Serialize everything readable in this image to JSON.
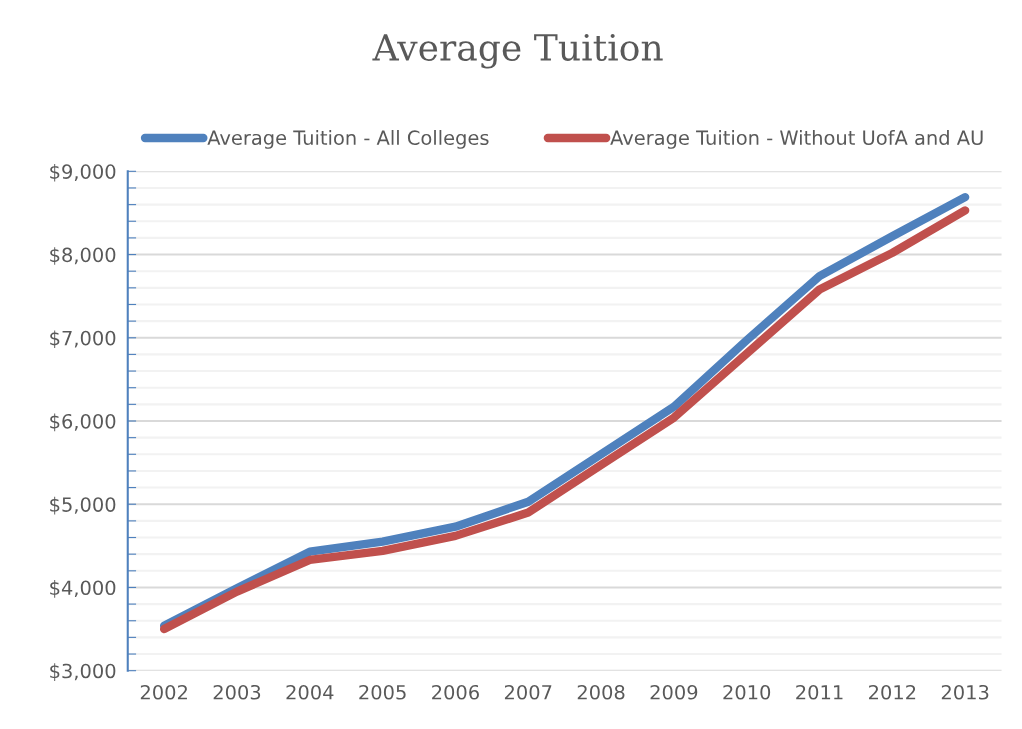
{
  "chart_data": {
    "type": "line",
    "title": "Average Tuition",
    "categories": [
      "2002",
      "2003",
      "2004",
      "2005",
      "2006",
      "2007",
      "2008",
      "2009",
      "2010",
      "2011",
      "2012",
      "2013"
    ],
    "series": [
      {
        "name": "Average Tuition - All Colleges",
        "color": "#4f81bd",
        "values": [
          3540,
          3990,
          4430,
          4550,
          4730,
          5030,
          5600,
          6170,
          6970,
          7740,
          8220,
          8690
        ]
      },
      {
        "name": "Average Tuition - Without UofA and AU",
        "color": "#c0504d",
        "values": [
          3500,
          3950,
          4330,
          4440,
          4620,
          4900,
          5470,
          6040,
          6810,
          7580,
          8020,
          8530
        ]
      }
    ],
    "ylim": [
      3000,
      9000
    ],
    "yticks": [
      {
        "value": 3000,
        "label": "$3,000"
      },
      {
        "value": 3200,
        "label": null
      },
      {
        "value": 3400,
        "label": null
      },
      {
        "value": 3600,
        "label": null
      },
      {
        "value": 3800,
        "label": null
      },
      {
        "value": 4000,
        "label": "$4,000"
      },
      {
        "value": 4200,
        "label": null
      },
      {
        "value": 4400,
        "label": null
      },
      {
        "value": 4600,
        "label": null
      },
      {
        "value": 4800,
        "label": null
      },
      {
        "value": 5000,
        "label": "$5,000"
      },
      {
        "value": 5200,
        "label": null
      },
      {
        "value": 5400,
        "label": null
      },
      {
        "value": 5600,
        "label": null
      },
      {
        "value": 5800,
        "label": null
      },
      {
        "value": 6000,
        "label": "$6,000"
      },
      {
        "value": 6200,
        "label": null
      },
      {
        "value": 6400,
        "label": null
      },
      {
        "value": 6600,
        "label": null
      },
      {
        "value": 6800,
        "label": null
      },
      {
        "value": 7000,
        "label": "$7,000"
      },
      {
        "value": 7200,
        "label": null
      },
      {
        "value": 7400,
        "label": null
      },
      {
        "value": 7600,
        "label": null
      },
      {
        "value": 7800,
        "label": null
      },
      {
        "value": 8000,
        "label": "$8,000"
      },
      {
        "value": 8200,
        "label": null
      },
      {
        "value": 8400,
        "label": null
      },
      {
        "value": 8600,
        "label": null
      },
      {
        "value": 8800,
        "label": null
      },
      {
        "value": 9000,
        "label": "$9,000"
      }
    ],
    "grid": "y",
    "legend": "top",
    "marker": "none",
    "line_style": "solid"
  }
}
